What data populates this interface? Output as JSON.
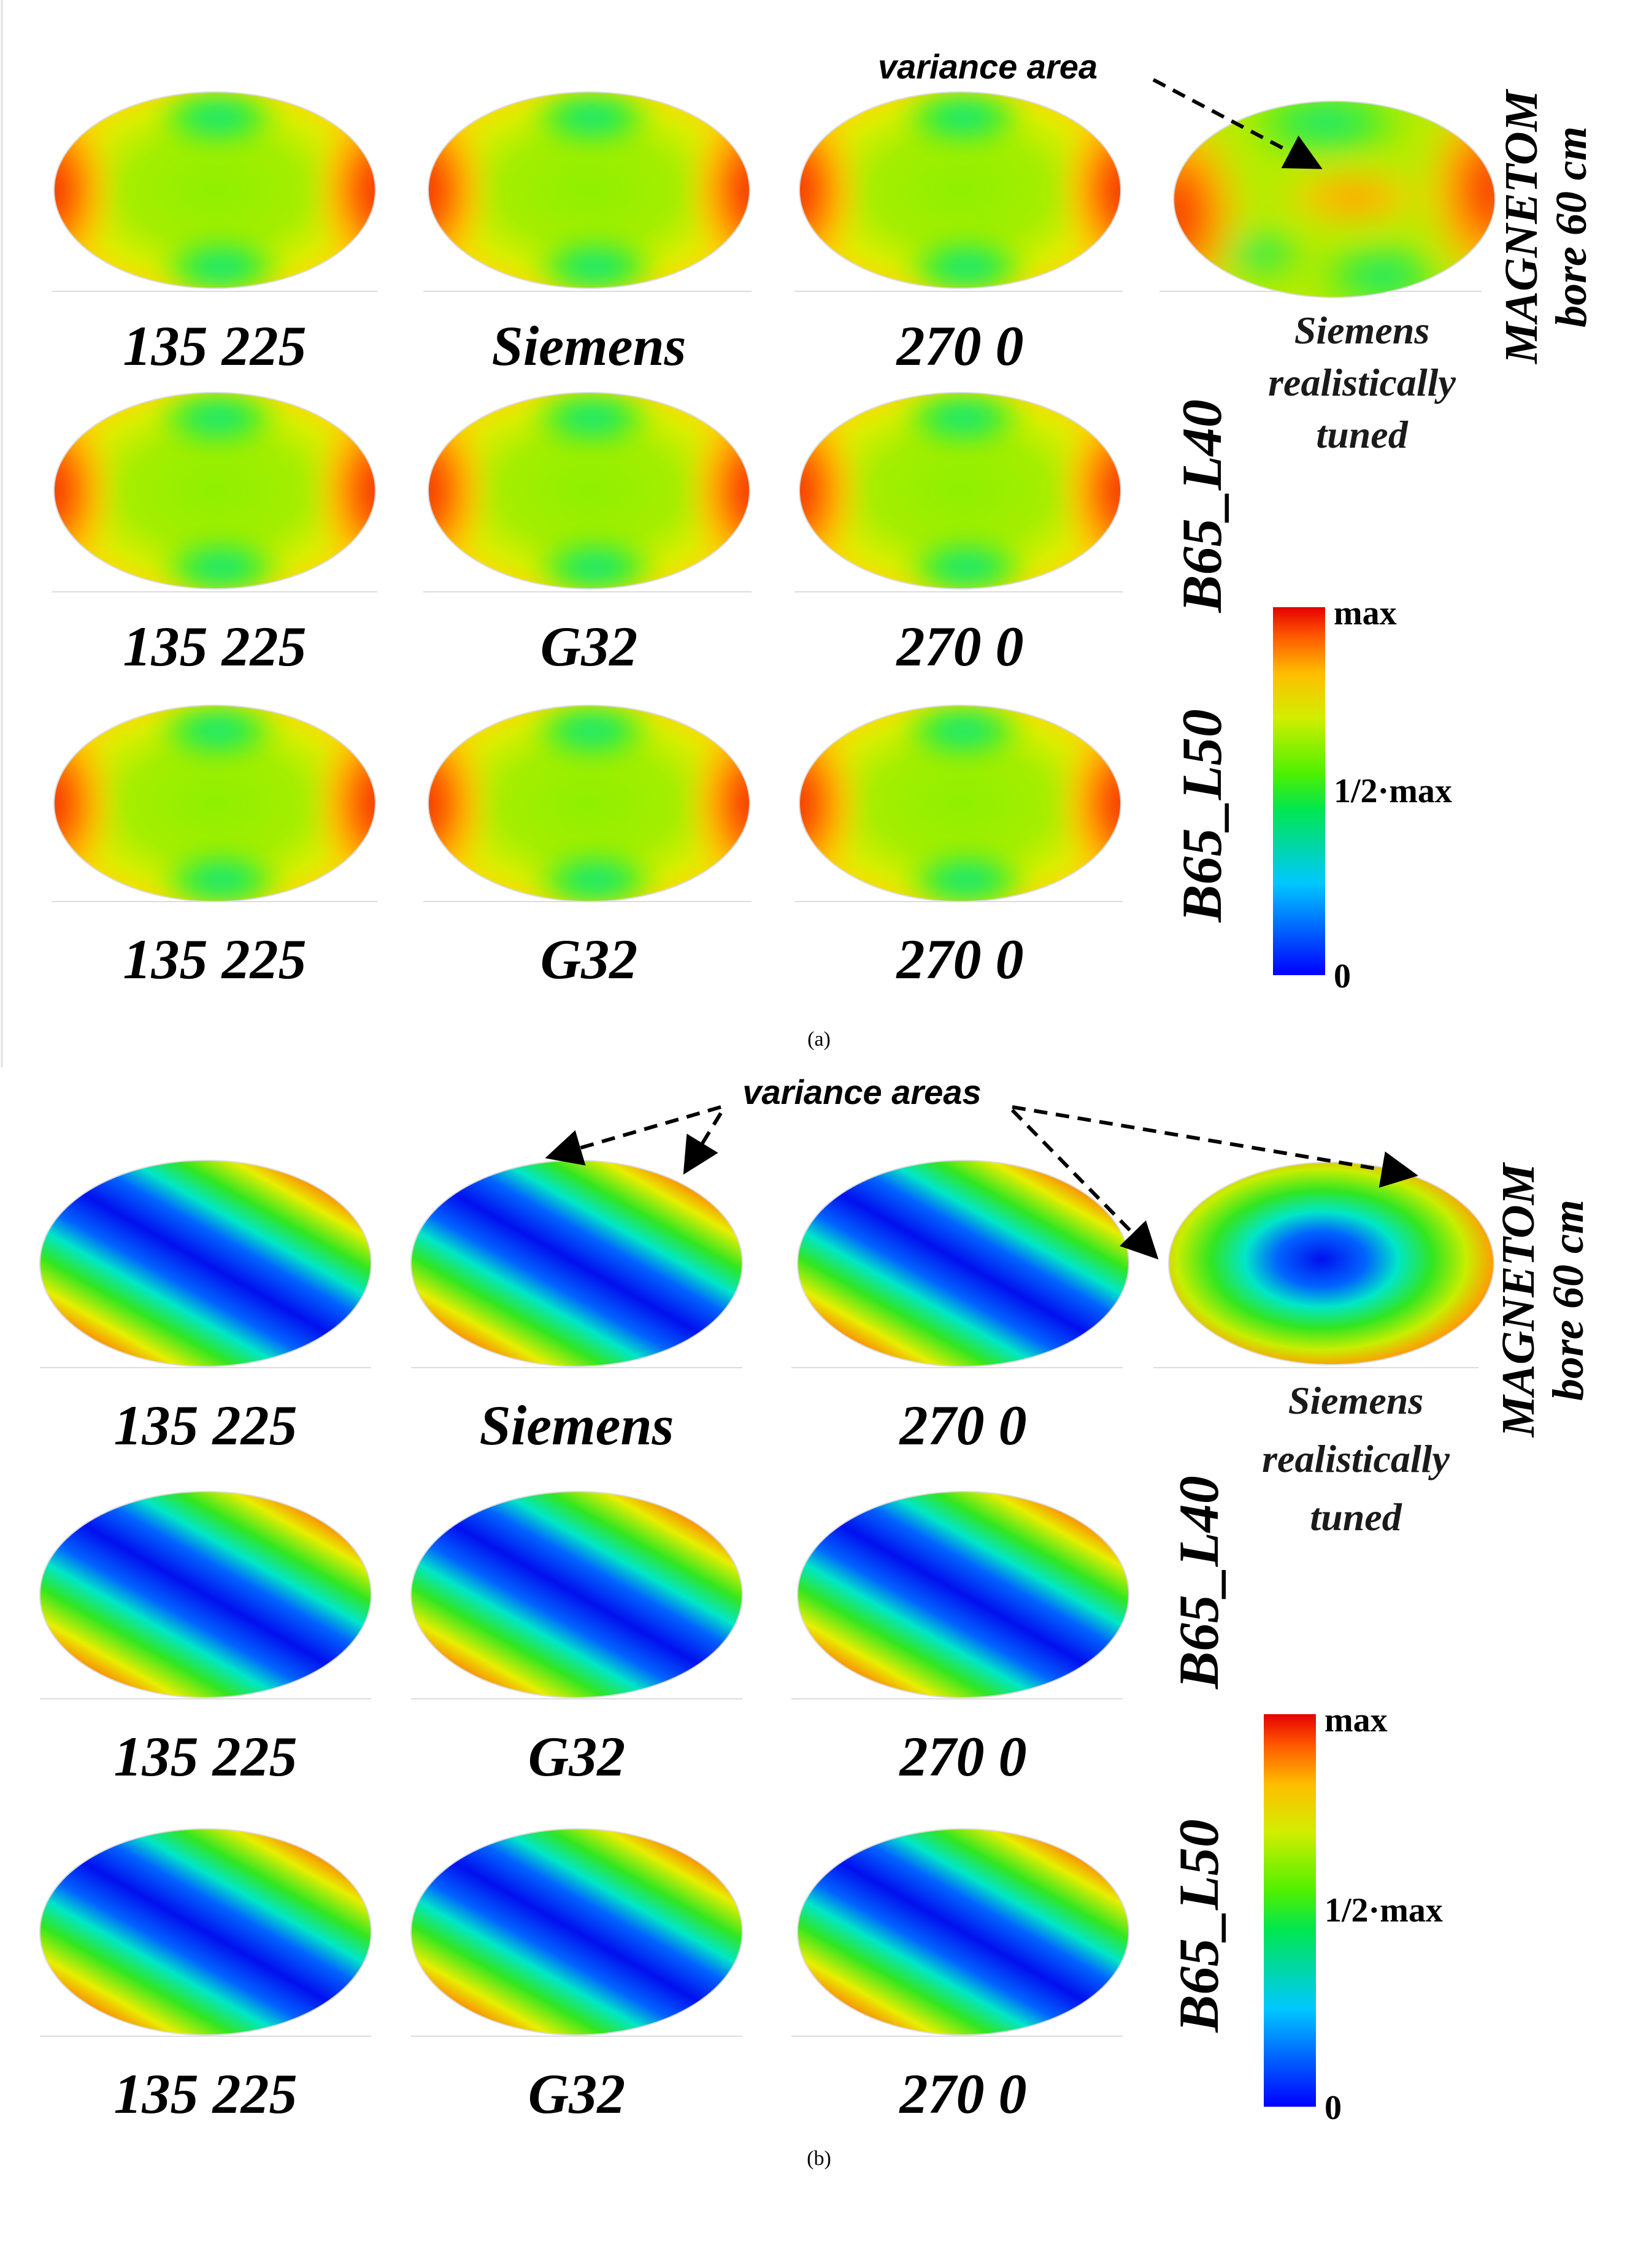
{
  "panels": [
    {
      "id": "a",
      "caption": "(a)",
      "pattern": "saddle",
      "variance_label": "variance area",
      "device_label": [
        "MAGNETOM",
        "bore 60 cm"
      ],
      "reference": {
        "name": "Siemens",
        "lines": [
          "Siemens",
          "realistically",
          "tuned"
        ]
      },
      "rows": [
        {
          "config": "",
          "labels": [
            "135 225",
            "Siemens",
            "270 0"
          ]
        },
        {
          "config": "B65_L40",
          "labels": [
            "135 225",
            "G32",
            "270 0"
          ]
        },
        {
          "config": "B65_L50",
          "labels": [
            "135 225",
            "G32",
            "270 0"
          ]
        }
      ]
    },
    {
      "id": "b",
      "caption": "(b)",
      "pattern": "diagonal",
      "variance_label": "variance areas",
      "device_label": [
        "MAGNETOM",
        "bore 60 cm"
      ],
      "reference": {
        "name": "Siemens",
        "lines": [
          "Siemens",
          "realistically",
          "tuned"
        ]
      },
      "rows": [
        {
          "config": "",
          "labels": [
            "135 225",
            "Siemens",
            "270 0"
          ]
        },
        {
          "config": "B65_L40",
          "labels": [
            "135 225",
            "G32",
            "270 0"
          ]
        },
        {
          "config": "B65_L50",
          "labels": [
            "135 225",
            "G32",
            "270 0"
          ]
        }
      ]
    }
  ],
  "colorbar": {
    "labels": [
      "max",
      "1/2·max",
      "0"
    ],
    "stops": [
      "#0000ff",
      "#00c8ff",
      "#00e650",
      "#50f000",
      "#d2ee00",
      "#ffbe00",
      "#ff5a00",
      "#e60000"
    ]
  }
}
